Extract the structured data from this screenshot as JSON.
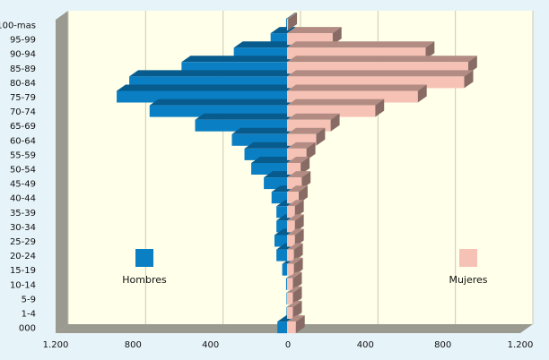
{
  "chart_data": {
    "type": "bar",
    "orientation": "horizontal",
    "categories": [
      "100-mas",
      "95-99",
      "90-94",
      "85-89",
      "80-84",
      "75-79",
      "70-74",
      "65-69",
      "60-64",
      "55-59",
      "50-54",
      "45-49",
      "40-44",
      "35-39",
      "30-34",
      "25-29",
      "20-24",
      "15-19",
      "10-14",
      "5-9",
      "1-4",
      "000"
    ],
    "series": [
      {
        "name": "Hombres",
        "color": "#0a7fc4",
        "values": [
          5,
          85,
          275,
          545,
          815,
          880,
          710,
          475,
          285,
          220,
          185,
          120,
          80,
          55,
          55,
          65,
          55,
          25,
          5,
          0,
          0,
          50
        ]
      },
      {
        "name": "Mujeres",
        "color": "#f7c2b6",
        "values": [
          5,
          235,
          715,
          935,
          915,
          675,
          455,
          225,
          150,
          100,
          70,
          75,
          60,
          40,
          40,
          40,
          35,
          35,
          30,
          30,
          30,
          45
        ]
      }
    ],
    "xticks": [
      "1.200",
      "800",
      "400",
      "0",
      "400",
      "800",
      "1.200"
    ],
    "xlim": [
      -1200,
      1200
    ],
    "grid": true,
    "legend": [
      "Hombres",
      "Mujeres"
    ]
  }
}
